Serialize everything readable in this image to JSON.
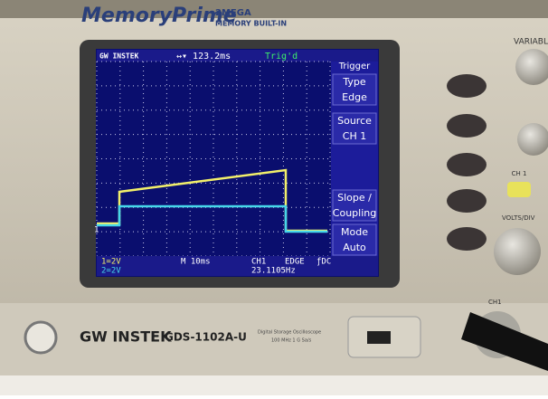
{
  "header": {
    "brand": "MemoryPrime",
    "badge_top": "2MEGA",
    "badge_bottom": "MEMORY BUILT-IN",
    "side_label": "VARIABL"
  },
  "screen": {
    "top_bar": {
      "logo": "GW INSTEK",
      "time_offset": "↔▾ 123.2ms",
      "trigger_state": "Trig'd"
    },
    "menu": {
      "title": "Trigger",
      "items": [
        [
          "Type",
          "Edge"
        ],
        [
          "Source",
          "CH 1"
        ],
        [
          "Slope /",
          "Coupling"
        ],
        [
          "Mode",
          "Auto"
        ]
      ]
    },
    "marker": "1",
    "status": {
      "ch1_scale": "1=2V",
      "ch2_scale": "2=2V",
      "timebase": "M 10ms",
      "trig_source": "CH1",
      "trig_type": "EDGE",
      "trig_coupling": "ƒDC",
      "frequency": "23.1105Hz"
    }
  },
  "panel": {
    "ch1_button": "CH 1",
    "volts_div": "VOLTS/DIV",
    "ch1_input": "CH1"
  },
  "front": {
    "logo": "GW INSTEK",
    "model": "GDS-1102A-U",
    "desc_top": "Digital Storage Oscilloscope",
    "desc_bottom": "100 MHz   1 G Sa/s"
  }
}
